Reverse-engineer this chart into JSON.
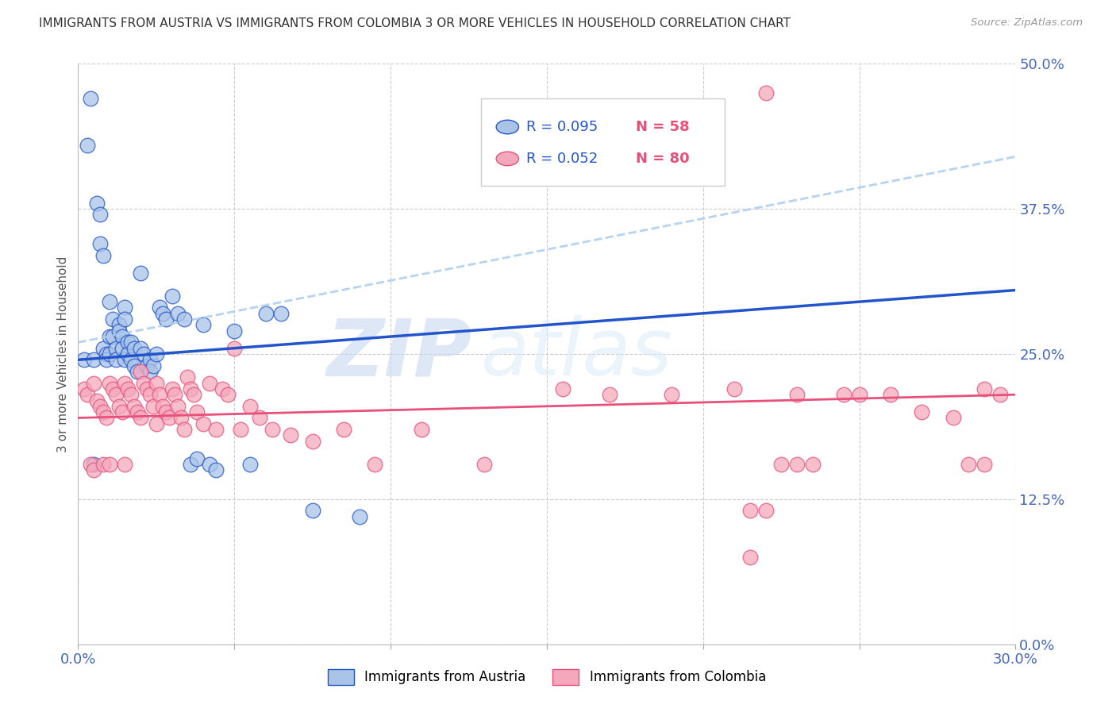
{
  "title": "IMMIGRANTS FROM AUSTRIA VS IMMIGRANTS FROM COLOMBIA 3 OR MORE VEHICLES IN HOUSEHOLD CORRELATION CHART",
  "source": "Source: ZipAtlas.com",
  "ylabel": "3 or more Vehicles in Household",
  "x_min": 0.0,
  "x_max": 0.3,
  "y_min": 0.0,
  "y_max": 0.5,
  "x_ticks": [
    0.0,
    0.05,
    0.1,
    0.15,
    0.2,
    0.25,
    0.3
  ],
  "y_ticks_right": [
    0.0,
    0.125,
    0.25,
    0.375,
    0.5
  ],
  "y_tick_labels_right": [
    "0.0%",
    "12.5%",
    "25.0%",
    "37.5%",
    "50.0%"
  ],
  "legend_r1": "R = 0.095",
  "legend_n1": "N = 58",
  "legend_r2": "R = 0.052",
  "legend_n2": "N = 80",
  "austria_color": "#aac4e8",
  "colombia_color": "#f5a8bc",
  "austria_line_color": "#2255cc",
  "colombia_line_color": "#e8507a",
  "austria_trendline_color": "#2255cc",
  "austria_dashed_color": "#aaccee",
  "background_color": "#ffffff",
  "grid_color": "#cccccc",
  "watermark_zip": "ZIP",
  "watermark_atlas": "atlas",
  "watermark_color": "#ddeeff",
  "austria_x": [
    0.002,
    0.003,
    0.004,
    0.005,
    0.005,
    0.006,
    0.007,
    0.007,
    0.008,
    0.008,
    0.009,
    0.009,
    0.01,
    0.01,
    0.01,
    0.011,
    0.011,
    0.012,
    0.012,
    0.013,
    0.013,
    0.014,
    0.014,
    0.015,
    0.015,
    0.015,
    0.016,
    0.016,
    0.017,
    0.017,
    0.018,
    0.018,
    0.019,
    0.02,
    0.02,
    0.021,
    0.022,
    0.023,
    0.023,
    0.024,
    0.025,
    0.026,
    0.027,
    0.028,
    0.03,
    0.032,
    0.034,
    0.036,
    0.038,
    0.04,
    0.042,
    0.044,
    0.05,
    0.055,
    0.06,
    0.065,
    0.075,
    0.09
  ],
  "austria_y": [
    0.245,
    0.43,
    0.47,
    0.155,
    0.245,
    0.38,
    0.37,
    0.345,
    0.335,
    0.255,
    0.25,
    0.245,
    0.295,
    0.265,
    0.25,
    0.28,
    0.265,
    0.255,
    0.245,
    0.275,
    0.27,
    0.265,
    0.255,
    0.29,
    0.28,
    0.245,
    0.26,
    0.25,
    0.26,
    0.245,
    0.255,
    0.24,
    0.235,
    0.32,
    0.255,
    0.25,
    0.24,
    0.245,
    0.235,
    0.24,
    0.25,
    0.29,
    0.285,
    0.28,
    0.3,
    0.285,
    0.28,
    0.155,
    0.16,
    0.275,
    0.155,
    0.15,
    0.27,
    0.155,
    0.285,
    0.285,
    0.115,
    0.11
  ],
  "colombia_x": [
    0.002,
    0.003,
    0.004,
    0.005,
    0.005,
    0.006,
    0.007,
    0.008,
    0.008,
    0.009,
    0.01,
    0.01,
    0.011,
    0.012,
    0.013,
    0.014,
    0.015,
    0.015,
    0.016,
    0.017,
    0.018,
    0.019,
    0.02,
    0.02,
    0.021,
    0.022,
    0.023,
    0.024,
    0.025,
    0.025,
    0.026,
    0.027,
    0.028,
    0.029,
    0.03,
    0.031,
    0.032,
    0.033,
    0.034,
    0.035,
    0.036,
    0.037,
    0.038,
    0.04,
    0.042,
    0.044,
    0.046,
    0.048,
    0.05,
    0.052,
    0.055,
    0.058,
    0.062,
    0.068,
    0.075,
    0.085,
    0.095,
    0.11,
    0.13,
    0.155,
    0.17,
    0.19,
    0.21,
    0.23,
    0.245,
    0.26,
    0.27,
    0.28,
    0.285,
    0.29,
    0.295,
    0.22,
    0.25,
    0.215,
    0.215,
    0.22,
    0.225,
    0.23,
    0.235,
    0.29
  ],
  "colombia_y": [
    0.22,
    0.215,
    0.155,
    0.225,
    0.15,
    0.21,
    0.205,
    0.2,
    0.155,
    0.195,
    0.225,
    0.155,
    0.22,
    0.215,
    0.205,
    0.2,
    0.225,
    0.155,
    0.22,
    0.215,
    0.205,
    0.2,
    0.235,
    0.195,
    0.225,
    0.22,
    0.215,
    0.205,
    0.225,
    0.19,
    0.215,
    0.205,
    0.2,
    0.195,
    0.22,
    0.215,
    0.205,
    0.195,
    0.185,
    0.23,
    0.22,
    0.215,
    0.2,
    0.19,
    0.225,
    0.185,
    0.22,
    0.215,
    0.255,
    0.185,
    0.205,
    0.195,
    0.185,
    0.18,
    0.175,
    0.185,
    0.155,
    0.185,
    0.155,
    0.22,
    0.215,
    0.215,
    0.22,
    0.215,
    0.215,
    0.215,
    0.2,
    0.195,
    0.155,
    0.22,
    0.215,
    0.475,
    0.215,
    0.115,
    0.075,
    0.115,
    0.155,
    0.155,
    0.155,
    0.155
  ]
}
